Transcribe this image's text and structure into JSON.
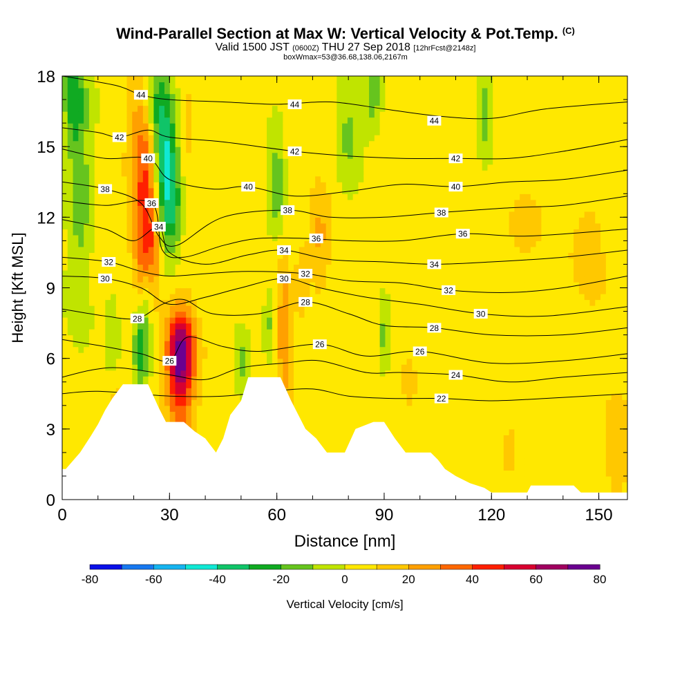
{
  "header": {
    "title_main": "Wind-Parallel Section at Max W: Vertical Velocity & Pot.Temp.",
    "title_tag": "(C)",
    "valid_prefix": "Valid 1500 JST",
    "valid_utc": "(0600Z)",
    "valid_date": "THU 27 Sep 2018",
    "forecast_tag": "[12hrFcst@2148z]",
    "boxwmax": "boxWmax=53@36.68,138.06,2167m"
  },
  "chart_data": {
    "type": "heatmap",
    "title": "Wind-Parallel Section at Max W: Vertical Velocity & Pot.Temp.",
    "xlabel": "Distance [nm]",
    "ylabel": "Height [Kft MSL]",
    "xlim": [
      0,
      158
    ],
    "ylim": [
      0,
      18
    ],
    "x_ticks": [
      0,
      30,
      60,
      90,
      120,
      150
    ],
    "y_ticks": [
      0,
      3,
      6,
      9,
      12,
      15,
      18
    ],
    "grid": false,
    "colorbar": {
      "label": "Vertical Velocity [cm/s]",
      "ticks": [
        -80,
        -60,
        -40,
        -20,
        0,
        20,
        40,
        60,
        80
      ],
      "bounds": [
        -80,
        -70,
        -60,
        -50,
        -40,
        -30,
        -20,
        -10,
        0,
        10,
        20,
        30,
        40,
        50,
        60,
        70,
        80
      ],
      "colors": [
        "#0a10e8",
        "#1778f0",
        "#16b4f0",
        "#10e8d4",
        "#10c468",
        "#10aa22",
        "#66c41e",
        "#c0e400",
        "#ffe800",
        "#ffc800",
        "#ffa000",
        "#ff6800",
        "#ff2000",
        "#d80030",
        "#a00060",
        "#6a0090"
      ],
      "placement": "bottom"
    },
    "terrain_kft": [
      [
        0,
        1.3
      ],
      [
        1,
        1.3
      ],
      [
        5,
        2.0
      ],
      [
        8,
        2.7
      ],
      [
        10,
        3.2
      ],
      [
        12,
        3.8
      ],
      [
        14,
        4.3
      ],
      [
        17,
        4.9
      ],
      [
        24,
        4.9
      ],
      [
        27,
        3.9
      ],
      [
        29,
        3.3
      ],
      [
        34,
        3.3
      ],
      [
        37,
        2.9
      ],
      [
        40,
        2.6
      ],
      [
        43,
        2.0
      ],
      [
        45,
        2.6
      ],
      [
        47,
        3.6
      ],
      [
        50,
        4.2
      ],
      [
        52,
        5.2
      ],
      [
        61,
        5.2
      ],
      [
        64,
        4.2
      ],
      [
        66,
        3.6
      ],
      [
        68,
        3.0
      ],
      [
        71,
        2.6
      ],
      [
        74,
        2.0
      ],
      [
        79,
        2.0
      ],
      [
        82,
        3.0
      ],
      [
        87,
        3.3
      ],
      [
        90,
        3.3
      ],
      [
        93,
        2.6
      ],
      [
        96,
        2.0
      ],
      [
        103,
        2.0
      ],
      [
        105,
        1.7
      ],
      [
        107,
        1.3
      ],
      [
        110,
        1.0
      ],
      [
        114,
        0.7
      ],
      [
        118,
        0.5
      ],
      [
        120,
        0.3
      ],
      [
        130,
        0.3
      ],
      [
        131,
        0.6
      ],
      [
        143,
        0.6
      ],
      [
        145,
        0.3
      ],
      [
        158,
        0.3
      ]
    ],
    "velocity_features": [
      {
        "x": 23,
        "y": 14.5,
        "sx": 3,
        "sy": 2.5,
        "value": 35
      },
      {
        "x": 24,
        "y": 10.5,
        "sx": 2.5,
        "sy": 1.6,
        "value": 40
      },
      {
        "x": 33,
        "y": 6.3,
        "sx": 2.6,
        "sy": 1.2,
        "value": 58
      },
      {
        "x": 33,
        "y": 4.5,
        "sx": 3,
        "sy": 2,
        "value": 30
      },
      {
        "x": 28.5,
        "y": 14.5,
        "sx": 2.2,
        "sy": 2.5,
        "value": -48
      },
      {
        "x": 31,
        "y": 12.5,
        "sx": 2,
        "sy": 1.4,
        "value": -25
      },
      {
        "x": 25,
        "y": 17,
        "sx": 2,
        "sy": 1.2,
        "value": -25
      },
      {
        "x": 22,
        "y": 6.5,
        "sx": 1.5,
        "sy": 1.5,
        "value": -30
      },
      {
        "x": 24,
        "y": 9,
        "sx": 1.2,
        "sy": 1.2,
        "value": -18
      },
      {
        "x": 5,
        "y": 13,
        "sx": 2.5,
        "sy": 3.5,
        "value": -20
      },
      {
        "x": 3,
        "y": 17,
        "sx": 2,
        "sy": 1.5,
        "value": -25
      },
      {
        "x": 62,
        "y": 7,
        "sx": 1.5,
        "sy": 2.5,
        "value": 22
      },
      {
        "x": 67,
        "y": 9.5,
        "sx": 1.5,
        "sy": 1.5,
        "value": 12
      },
      {
        "x": 72,
        "y": 11,
        "sx": 2,
        "sy": 1.5,
        "value": 18
      },
      {
        "x": 60,
        "y": 13.5,
        "sx": 1.5,
        "sy": 1.5,
        "value": -22
      },
      {
        "x": 58,
        "y": 7.5,
        "sx": 1.2,
        "sy": 1.2,
        "value": -15
      },
      {
        "x": 50,
        "y": 5.8,
        "sx": 1.5,
        "sy": 0.8,
        "value": -18
      },
      {
        "x": 87,
        "y": 17,
        "sx": 2,
        "sy": 1.5,
        "value": -22
      },
      {
        "x": 80,
        "y": 16,
        "sx": 2,
        "sy": 2,
        "value": -15
      },
      {
        "x": 90,
        "y": 6.8,
        "sx": 1.2,
        "sy": 1,
        "value": -18
      },
      {
        "x": 118,
        "y": 16.5,
        "sx": 1.5,
        "sy": 1.5,
        "value": -18
      },
      {
        "x": 155,
        "y": 2,
        "sx": 2.5,
        "sy": 1.5,
        "value": 15
      },
      {
        "x": 148,
        "y": 11,
        "sx": 4,
        "sy": 2,
        "value": 10
      },
      {
        "x": 130,
        "y": 12,
        "sx": 4,
        "sy": 1.5,
        "value": 10
      },
      {
        "x": 125,
        "y": 2,
        "sx": 2,
        "sy": 1,
        "value": 10
      },
      {
        "x": 88,
        "y": 14,
        "sx": 2,
        "sy": 2,
        "value": 8
      },
      {
        "x": 97,
        "y": 5,
        "sx": 1.5,
        "sy": 1,
        "value": 12
      },
      {
        "x": 35,
        "y": 15,
        "sx": 1.5,
        "sy": 2,
        "value": 10
      },
      {
        "x": 14,
        "y": 7,
        "sx": 1.5,
        "sy": 1.5,
        "value": -12
      },
      {
        "x": 15,
        "y": 3.5,
        "sx": 1.5,
        "sy": 1,
        "value": 15
      }
    ],
    "theta_contours": [
      {
        "label": "44",
        "label_x": 22,
        "label_y": 17.2,
        "points": [
          [
            0,
            18
          ],
          [
            15,
            17.6
          ],
          [
            22,
            17.2
          ],
          [
            30,
            17.0
          ],
          [
            45,
            16.9
          ],
          [
            60,
            16.8
          ],
          [
            75,
            16.9
          ],
          [
            90,
            16.6
          ],
          [
            105,
            16.3
          ],
          [
            120,
            16.2
          ],
          [
            135,
            16.6
          ],
          [
            158,
            16.9
          ]
        ]
      },
      {
        "label": "44",
        "label_x": 65,
        "label_y": 16.8,
        "points": []
      },
      {
        "label": "44",
        "label_x": 104,
        "label_y": 16.1,
        "points": []
      },
      {
        "label": "42",
        "label_x": 16,
        "label_y": 15.4,
        "points": [
          [
            0,
            15.8
          ],
          [
            10,
            15.6
          ],
          [
            16,
            15.4
          ],
          [
            24,
            15.7
          ],
          [
            30,
            15.4
          ],
          [
            45,
            15.2
          ],
          [
            65,
            14.8
          ],
          [
            80,
            14.6
          ],
          [
            95,
            14.5
          ],
          [
            110,
            14.5
          ],
          [
            125,
            14.5
          ],
          [
            140,
            14.8
          ],
          [
            158,
            15.3
          ]
        ]
      },
      {
        "label": "42",
        "label_x": 65,
        "label_y": 14.8,
        "points": []
      },
      {
        "label": "42",
        "label_x": 110,
        "label_y": 14.5,
        "points": []
      },
      {
        "label": "40",
        "label_x": 24,
        "label_y": 14.5,
        "points": [
          [
            0,
            14.9
          ],
          [
            12,
            14.5
          ],
          [
            24,
            14.5
          ],
          [
            30,
            13.6
          ],
          [
            42,
            13.2
          ],
          [
            52,
            13.3
          ],
          [
            65,
            12.9
          ],
          [
            80,
            13.1
          ],
          [
            95,
            13.4
          ],
          [
            110,
            13.3
          ],
          [
            125,
            13.5
          ],
          [
            140,
            13.6
          ],
          [
            158,
            14.0
          ]
        ]
      },
      {
        "label": "40",
        "label_x": 52,
        "label_y": 13.3,
        "points": []
      },
      {
        "label": "40",
        "label_x": 110,
        "label_y": 13.3,
        "points": []
      },
      {
        "label": "38",
        "label_x": 12,
        "label_y": 13.2,
        "points": [
          [
            0,
            13.5
          ],
          [
            12,
            13.2
          ],
          [
            22,
            12.6
          ],
          [
            27,
            11.2
          ],
          [
            32,
            10.8
          ],
          [
            45,
            12.0
          ],
          [
            63,
            12.3
          ],
          [
            75,
            12.0
          ],
          [
            90,
            12.0
          ],
          [
            106,
            12.2
          ],
          [
            125,
            12.4
          ],
          [
            140,
            12.5
          ],
          [
            158,
            12.9
          ]
        ]
      },
      {
        "label": "38",
        "label_x": 63,
        "label_y": 12.3,
        "points": []
      },
      {
        "label": "38",
        "label_x": 106,
        "label_y": 12.2,
        "points": []
      },
      {
        "label": "36",
        "label_x": 25,
        "label_y": 12.6,
        "points": [
          [
            0,
            12.7
          ],
          [
            12,
            12.5
          ],
          [
            25,
            12.6
          ],
          [
            28,
            10.6
          ],
          [
            34,
            10.3
          ],
          [
            45,
            10.8
          ],
          [
            55,
            11.1
          ],
          [
            68,
            11.1
          ],
          [
            80,
            11.0
          ],
          [
            95,
            11.0
          ],
          [
            112,
            11.3
          ],
          [
            130,
            11.2
          ],
          [
            158,
            11.5
          ]
        ]
      },
      {
        "label": "36",
        "label_x": 71,
        "label_y": 11.1,
        "points": []
      },
      {
        "label": "36",
        "label_x": 112,
        "label_y": 11.3,
        "points": []
      },
      {
        "label": "34",
        "label_x": 27,
        "label_y": 11.6,
        "points": [
          [
            0,
            11.9
          ],
          [
            12,
            11.5
          ],
          [
            20,
            11.0
          ],
          [
            27,
            11.6
          ],
          [
            30,
            10.5
          ],
          [
            40,
            10.0
          ],
          [
            52,
            10.4
          ],
          [
            62,
            10.6
          ],
          [
            75,
            10.2
          ],
          [
            90,
            10.1
          ],
          [
            104,
            10.0
          ],
          [
            120,
            10.1
          ],
          [
            140,
            10.3
          ],
          [
            158,
            10.6
          ]
        ]
      },
      {
        "label": "34",
        "label_x": 62,
        "label_y": 10.6,
        "points": []
      },
      {
        "label": "34",
        "label_x": 104,
        "label_y": 10.0,
        "points": []
      },
      {
        "label": "32",
        "label_x": 13,
        "label_y": 10.1,
        "points": [
          [
            0,
            10.3
          ],
          [
            13,
            10.1
          ],
          [
            22,
            9.7
          ],
          [
            30,
            9.5
          ],
          [
            40,
            9.6
          ],
          [
            52,
            9.7
          ],
          [
            68,
            9.6
          ],
          [
            80,
            9.3
          ],
          [
            95,
            9.2
          ],
          [
            108,
            8.9
          ],
          [
            125,
            8.8
          ],
          [
            140,
            9.0
          ],
          [
            158,
            9.5
          ]
        ]
      },
      {
        "label": "32",
        "label_x": 68,
        "label_y": 9.6,
        "points": []
      },
      {
        "label": "32",
        "label_x": 108,
        "label_y": 8.9,
        "points": []
      },
      {
        "label": "30",
        "label_x": 12,
        "label_y": 9.4,
        "points": [
          [
            0,
            9.5
          ],
          [
            12,
            9.4
          ],
          [
            22,
            9.0
          ],
          [
            30,
            8.3
          ],
          [
            40,
            8.6
          ],
          [
            50,
            9.0
          ],
          [
            62,
            9.4
          ],
          [
            72,
            9.0
          ],
          [
            85,
            8.6
          ],
          [
            100,
            8.3
          ],
          [
            117,
            7.9
          ],
          [
            135,
            7.8
          ],
          [
            158,
            8.2
          ]
        ]
      },
      {
        "label": "30",
        "label_x": 62,
        "label_y": 9.4,
        "points": []
      },
      {
        "label": "30",
        "label_x": 117,
        "label_y": 7.9,
        "points": []
      },
      {
        "label": "28",
        "label_x": 21,
        "label_y": 7.7,
        "points": [
          [
            0,
            8.1
          ],
          [
            12,
            7.8
          ],
          [
            21,
            7.7
          ],
          [
            28,
            8.3
          ],
          [
            34,
            8.5
          ],
          [
            42,
            7.9
          ],
          [
            55,
            7.9
          ],
          [
            68,
            8.4
          ],
          [
            80,
            7.9
          ],
          [
            90,
            7.4
          ],
          [
            104,
            7.3
          ],
          [
            120,
            7.0
          ],
          [
            140,
            7.0
          ],
          [
            158,
            7.3
          ]
        ]
      },
      {
        "label": "28",
        "label_x": 68,
        "label_y": 8.4,
        "points": []
      },
      {
        "label": "28",
        "label_x": 104,
        "label_y": 7.3,
        "points": []
      },
      {
        "label": "26",
        "label_x": 30,
        "label_y": 5.9,
        "points": [
          [
            0,
            6.8
          ],
          [
            12,
            6.5
          ],
          [
            22,
            6.2
          ],
          [
            30,
            5.9
          ],
          [
            35,
            6.9
          ],
          [
            45,
            6.5
          ],
          [
            55,
            6.3
          ],
          [
            72,
            6.6
          ],
          [
            85,
            6.1
          ],
          [
            100,
            6.3
          ],
          [
            120,
            5.8
          ],
          [
            140,
            5.9
          ],
          [
            158,
            6.2
          ]
        ]
      },
      {
        "label": "26",
        "label_x": 72,
        "label_y": 6.6,
        "points": []
      },
      {
        "label": "26",
        "label_x": 100,
        "label_y": 6.3,
        "points": []
      },
      {
        "label": "24",
        "label_x": 110,
        "label_y": 5.3,
        "points": [
          [
            0,
            5.2
          ],
          [
            8,
            5.5
          ],
          [
            16,
            5.6
          ],
          [
            30,
            5.3
          ],
          [
            40,
            5.1
          ],
          [
            50,
            5.6
          ],
          [
            62,
            5.8
          ],
          [
            72,
            5.9
          ],
          [
            85,
            5.4
          ],
          [
            95,
            5.4
          ],
          [
            110,
            5.3
          ],
          [
            125,
            5.0
          ],
          [
            140,
            5.2
          ],
          [
            158,
            5.4
          ]
        ]
      },
      {
        "label": "22",
        "label_x": 106,
        "label_y": 4.3,
        "points": [
          [
            0,
            4.5
          ],
          [
            10,
            4.6
          ],
          [
            30,
            4.4
          ],
          [
            45,
            4.4
          ],
          [
            58,
            4.6
          ],
          [
            70,
            4.7
          ],
          [
            80,
            4.4
          ],
          [
            92,
            4.3
          ],
          [
            106,
            4.3
          ],
          [
            120,
            4.2
          ],
          [
            135,
            4.3
          ],
          [
            158,
            4.5
          ]
        ]
      }
    ]
  }
}
